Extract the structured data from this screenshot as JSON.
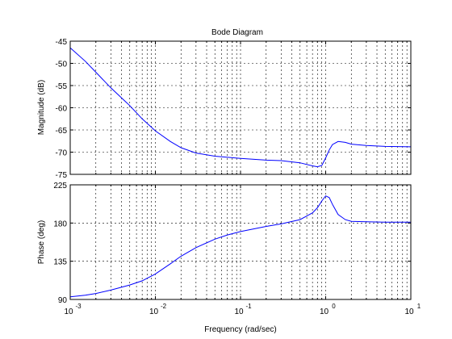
{
  "chart_data": [
    {
      "type": "line",
      "title": "Bode Diagram",
      "xlabel": "",
      "ylabel": "Magnitude (dB)",
      "xscale": "log",
      "xlim": [
        0.001,
        10
      ],
      "ylim": [
        -75,
        -45
      ],
      "yticks": [
        -75,
        -70,
        -65,
        -60,
        -55,
        -50,
        -45
      ],
      "grid": true,
      "legend": "none",
      "line_color": "#0000ff",
      "series": [
        {
          "x": [
            0.001,
            0.0015,
            0.002,
            0.003,
            0.005,
            0.007,
            0.01,
            0.015,
            0.02,
            0.03,
            0.05,
            0.1,
            0.2,
            0.3,
            0.5,
            0.7,
            0.8,
            0.9,
            1.0,
            1.1,
            1.2,
            1.4,
            1.7,
            2,
            3,
            5,
            10
          ],
          "y": [
            -46.5,
            -49.5,
            -52.0,
            -55.5,
            -59.5,
            -62.5,
            -65.2,
            -67.6,
            -69.0,
            -70.2,
            -70.9,
            -71.4,
            -71.8,
            -71.9,
            -72.4,
            -73.1,
            -73.3,
            -73.0,
            -71.3,
            -69.5,
            -68.3,
            -67.6,
            -67.8,
            -68.2,
            -68.5,
            -68.7,
            -68.8
          ]
        }
      ]
    },
    {
      "type": "line",
      "title": "",
      "xlabel": "Frequency  (rad/sec)",
      "ylabel": "Phase (deg)",
      "xscale": "log",
      "xlim": [
        0.001,
        10
      ],
      "ylim": [
        90,
        225
      ],
      "yticks": [
        90,
        135,
        180,
        225
      ],
      "xticks": [
        0.001,
        0.01,
        0.1,
        1,
        10
      ],
      "xtick_labels": [
        [
          "10",
          "-3"
        ],
        [
          "10",
          "-2"
        ],
        [
          "10",
          "-1"
        ],
        [
          "10",
          "0"
        ],
        [
          "10",
          "1"
        ]
      ],
      "grid": true,
      "legend": "none",
      "line_color": "#0000ff",
      "series": [
        {
          "x": [
            0.001,
            0.0015,
            0.002,
            0.003,
            0.005,
            0.007,
            0.01,
            0.015,
            0.02,
            0.03,
            0.05,
            0.07,
            0.1,
            0.2,
            0.3,
            0.5,
            0.7,
            0.8,
            0.9,
            1.0,
            1.1,
            1.2,
            1.4,
            1.7,
            2,
            3,
            5,
            10
          ],
          "y": [
            93,
            95,
            97,
            101,
            107,
            112,
            120,
            132,
            141,
            151,
            161,
            166,
            170,
            176,
            179,
            184,
            192,
            198,
            206,
            212,
            210,
            202,
            190,
            184,
            182,
            181.5,
            181,
            181
          ]
        }
      ]
    }
  ]
}
